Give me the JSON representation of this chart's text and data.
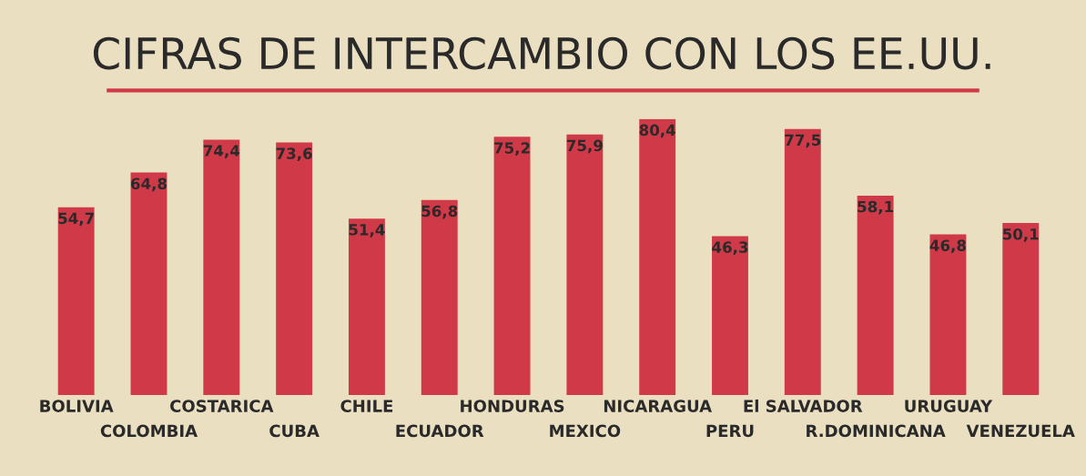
{
  "chart_data": {
    "type": "bar",
    "title": "CIFRAS DE INTERCAMBIO CON LOS EE.UU.",
    "categories": [
      "BOLIVIA",
      "COLOMBIA",
      "COSTARICA",
      "CUBA",
      "CHILE",
      "ECUADOR",
      "HONDURAS",
      "MEXICO",
      "NICARAGUA",
      "PERU",
      "El SALVADOR",
      "R.DOMINICANA",
      "URUGUAY",
      "VENEZUELA"
    ],
    "values": [
      54.7,
      64.8,
      74.4,
      73.6,
      51.4,
      56.8,
      75.2,
      75.9,
      80.4,
      46.3,
      77.5,
      58.1,
      46.8,
      50.1
    ],
    "value_labels": [
      "54,7",
      "64,8",
      "74,4",
      "73,6",
      "51,4",
      "56,8",
      "75,2",
      "75,9",
      "80,4",
      "46,3",
      "77,5",
      "58,1",
      "46,8",
      "50,1"
    ],
    "color": "#d03a48",
    "grid": false,
    "legend": false
  }
}
